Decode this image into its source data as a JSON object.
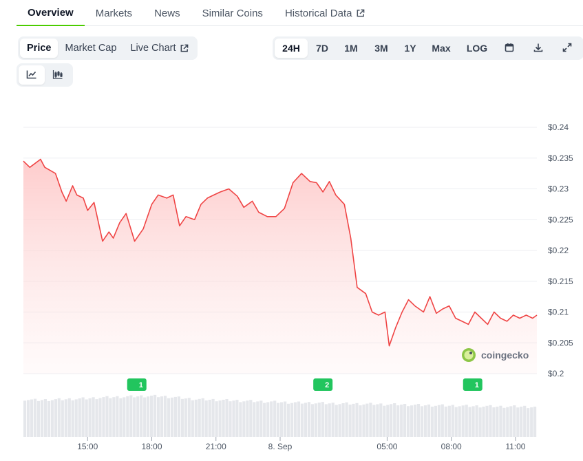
{
  "tabs": [
    {
      "label": "Overview",
      "active": true
    },
    {
      "label": "Markets"
    },
    {
      "label": "News"
    },
    {
      "label": "Similar Coins"
    },
    {
      "label": "Historical Data",
      "external": true
    }
  ],
  "view_toggle": {
    "price_label": "Price",
    "market_cap_label": "Market Cap",
    "live_chart_label": "Live Chart",
    "selected": "Price"
  },
  "range_toggle": {
    "options": [
      "24H",
      "7D",
      "1M",
      "3M",
      "1Y",
      "Max",
      "LOG"
    ],
    "selected": "24H",
    "icons": [
      "calendar-icon",
      "download-icon",
      "fullscreen-icon"
    ]
  },
  "chart_type_toggle": {
    "options": [
      "line-chart-icon",
      "candlestick-icon"
    ],
    "selected": "line-chart-icon"
  },
  "watermark": "coingecko",
  "colors": {
    "line": "#ef4444",
    "fill_top": "#fecaca",
    "accent_green": "#4bcc00",
    "badge_green": "#22c55e",
    "volume": "#e5e7eb"
  },
  "chart_data": {
    "type": "area",
    "ylim": [
      0.2,
      0.24
    ],
    "y_ticks": [
      "$0.24",
      "$0.235",
      "$0.23",
      "$0.225",
      "$0.22",
      "$0.215",
      "$0.21",
      "$0.205",
      "$0.2"
    ],
    "y_tick_values": [
      0.24,
      0.235,
      0.23,
      0.225,
      0.22,
      0.215,
      0.21,
      0.205,
      0.2
    ],
    "x_ticks": [
      "15:00",
      "18:00",
      "21:00",
      "8. Sep",
      "05:00",
      "08:00",
      "11:00"
    ],
    "x_tick_hours": [
      3,
      6,
      9,
      12,
      17,
      20,
      23
    ],
    "x_range_hours": [
      0,
      24
    ],
    "price_hours": [
      0,
      0.3,
      0.8,
      1.0,
      1.5,
      1.8,
      2.0,
      2.3,
      2.5,
      2.8,
      3.0,
      3.3,
      3.7,
      4.0,
      4.2,
      4.5,
      4.8,
      5.2,
      5.6,
      6.0,
      6.3,
      6.7,
      7.0,
      7.3,
      7.6,
      8.0,
      8.3,
      8.6,
      8.9,
      9.2,
      9.6,
      10.0,
      10.3,
      10.7,
      11.0,
      11.4,
      11.8,
      12.2,
      12.6,
      13.0,
      13.4,
      13.7,
      14.0,
      14.3,
      14.6,
      15.0,
      15.3,
      15.6,
      16.0,
      16.3,
      16.6,
      16.9,
      17.1,
      17.4,
      17.7,
      18.0,
      18.3,
      18.7,
      19.0,
      19.3,
      19.6,
      19.9,
      20.2,
      20.5,
      20.8,
      21.1,
      21.4,
      21.7,
      22.0,
      22.3,
      22.6,
      22.9,
      23.2,
      23.5,
      23.8,
      24.0
    ],
    "prices": [
      0.2345,
      0.2335,
      0.2348,
      0.2335,
      0.2325,
      0.2295,
      0.228,
      0.2305,
      0.229,
      0.2285,
      0.2265,
      0.2278,
      0.2215,
      0.223,
      0.222,
      0.2245,
      0.226,
      0.2215,
      0.2235,
      0.2275,
      0.229,
      0.2285,
      0.229,
      0.224,
      0.2255,
      0.225,
      0.2275,
      0.2285,
      0.229,
      0.2295,
      0.23,
      0.2288,
      0.227,
      0.228,
      0.2262,
      0.2255,
      0.2255,
      0.2268,
      0.231,
      0.2325,
      0.2312,
      0.231,
      0.2295,
      0.2312,
      0.229,
      0.2275,
      0.222,
      0.214,
      0.213,
      0.21,
      0.2095,
      0.21,
      0.2045,
      0.2075,
      0.21,
      0.212,
      0.211,
      0.21,
      0.2125,
      0.2098,
      0.2105,
      0.211,
      0.209,
      0.2085,
      0.208,
      0.21,
      0.209,
      0.208,
      0.21,
      0.209,
      0.2085,
      0.2095,
      0.209,
      0.2095,
      0.209,
      0.2095
    ],
    "news_markers": [
      {
        "hour": 5.3,
        "count": "1"
      },
      {
        "hour": 14.0,
        "count": "2"
      },
      {
        "hour": 21.0,
        "count": "1"
      }
    ],
    "volume_relative": [
      0.88,
      0.86,
      0.87,
      0.88,
      0.89,
      0.9,
      0.92,
      0.93,
      0.94,
      0.95,
      0.96,
      0.95,
      0.93,
      0.9,
      0.88,
      0.87,
      0.86,
      0.85,
      0.84,
      0.83,
      0.82,
      0.81,
      0.8,
      0.8,
      0.79,
      0.78,
      0.78,
      0.77,
      0.77,
      0.76,
      0.76,
      0.75,
      0.74,
      0.74,
      0.73,
      0.73,
      0.72,
      0.72,
      0.71,
      0.71,
      0.71,
      0.7
    ]
  }
}
